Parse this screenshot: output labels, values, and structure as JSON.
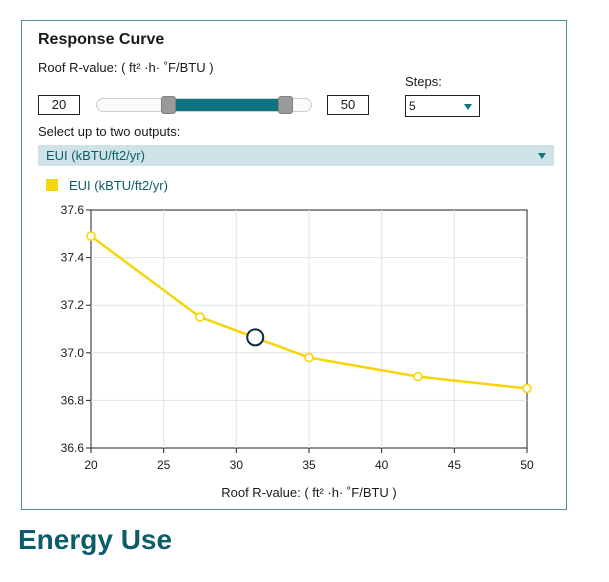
{
  "panel": {
    "title": "Response Curve",
    "parameter_label": "Roof R-value: ( ft² ·h· ˚F/BTU )",
    "steps_label": "Steps:",
    "range_min": "20",
    "range_max": "50",
    "slider_low_fraction": 0.25,
    "slider_high_fraction": 0.9,
    "steps_value": "5",
    "outputs_label": "Select up to two outputs:",
    "selected_output": "EUI (kBTU/ft2/yr)"
  },
  "chart_data": {
    "type": "line",
    "legend_placement": "top-left",
    "grid": true,
    "xlabel": "Roof R-value: ( ft² ·h· ˚F/BTU )",
    "ylabel": "",
    "xlim": [
      20,
      50
    ],
    "ylim": [
      36.6,
      37.6
    ],
    "x_ticks": [
      "20",
      "25",
      "30",
      "35",
      "40",
      "45",
      "50"
    ],
    "y_ticks": [
      "36.6",
      "36.8",
      "37.0",
      "37.2",
      "37.4",
      "37.6"
    ],
    "x_tick_values": [
      20,
      25,
      30,
      35,
      40,
      45,
      50
    ],
    "y_tick_values": [
      36.6,
      36.8,
      37.0,
      37.2,
      37.4,
      37.6
    ],
    "series": [
      {
        "name": "EUI (kBTU/ft2/yr)",
        "color": "#f7d508",
        "x": [
          20,
          27.5,
          35,
          42.5,
          50
        ],
        "y": [
          37.49,
          37.15,
          36.98,
          36.9,
          36.85
        ]
      }
    ],
    "current_point": {
      "x": 31.3,
      "y": 37.065
    }
  },
  "footer": {
    "title": "Energy Use"
  },
  "colors": {
    "accent": "#0e7481",
    "brand_text": "#0b5d69",
    "series": "#f7d508"
  }
}
